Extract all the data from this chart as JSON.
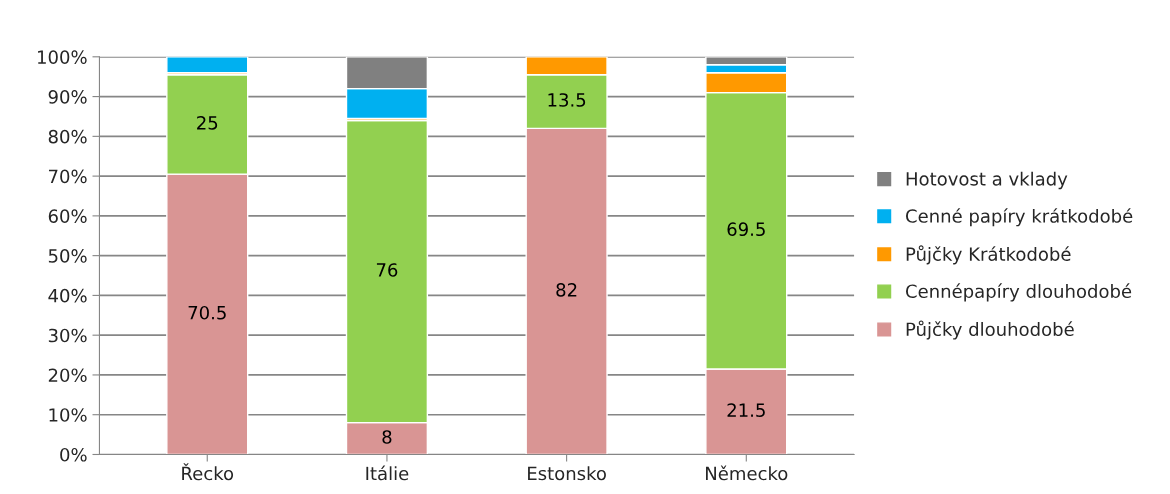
{
  "chart_data": {
    "type": "bar",
    "stacked": true,
    "categories": [
      "Řecko",
      "Itálie",
      "Estonsko",
      "Německo"
    ],
    "series": [
      {
        "name": "Půjčky dlouhodobé",
        "color": "#d99594",
        "values": [
          70.5,
          8,
          82,
          21.5
        ],
        "value_labels": [
          "70.5",
          "8",
          "82",
          "21.5"
        ]
      },
      {
        "name": "Cennépapíry dlouhodobé",
        "color": "#92d050",
        "values": [
          25,
          76,
          13.5,
          69.5
        ],
        "value_labels": [
          "25",
          "76",
          "13.5",
          "69.5"
        ]
      },
      {
        "name": "Půjčky Krátkodobé",
        "color": "#ff9900",
        "values": [
          0.5,
          0.5,
          4.5,
          5
        ]
      },
      {
        "name": "Cenné papíry krátkodobé",
        "color": "#00b0f0",
        "values": [
          4,
          7.5,
          null,
          2
        ]
      },
      {
        "name": "Hotovost a vklady",
        "color": "#808080",
        "values": [
          null,
          8,
          null,
          2
        ]
      }
    ],
    "ylim": [
      0,
      100
    ],
    "yticks": [
      {
        "value": 0,
        "label": "0%"
      },
      {
        "value": 10,
        "label": "10%"
      },
      {
        "value": 20,
        "label": "20%"
      },
      {
        "value": 30,
        "label": "30%"
      },
      {
        "value": 40,
        "label": "40%"
      },
      {
        "value": 50,
        "label": "50%"
      },
      {
        "value": 60,
        "label": "60%"
      },
      {
        "value": 70,
        "label": "70%"
      },
      {
        "value": 80,
        "label": "80%"
      },
      {
        "value": 90,
        "label": "90%"
      },
      {
        "value": 100,
        "label": "100%"
      }
    ],
    "grid": "y",
    "legend": "right"
  }
}
